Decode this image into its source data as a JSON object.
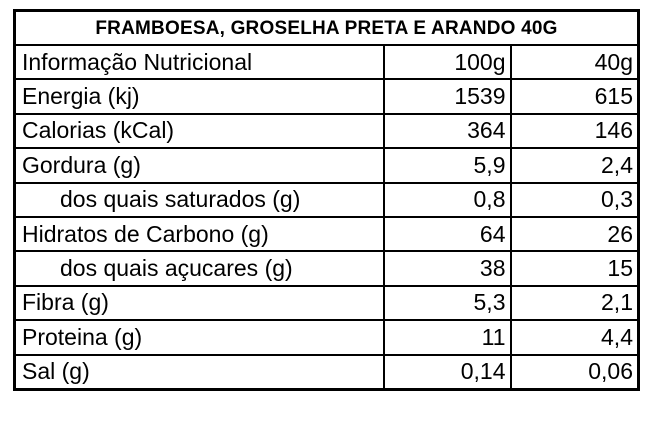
{
  "table": {
    "title": "FRAMBOESA, GROSELHA PRETA E ARANDO 40G",
    "rows": [
      [
        "Informação Nutricional",
        "100g",
        "40g"
      ],
      [
        "Energia (kj)",
        "1539",
        "615"
      ],
      [
        "Calorias (kCal)",
        "364",
        "146"
      ],
      [
        "Gordura (g)",
        "5,9",
        "2,4"
      ],
      [
        "dos quais saturados (g)",
        "0,8",
        "0,3"
      ],
      [
        "Hidratos de Carbono (g)",
        "64",
        "26"
      ],
      [
        "dos quais açucares (g)",
        "38",
        "15"
      ],
      [
        "Fibra (g)",
        "5,3",
        "2,1"
      ],
      [
        "Proteina (g)",
        "11",
        "4,4"
      ],
      [
        "Sal (g)",
        "0,14",
        "0,06"
      ]
    ]
  }
}
